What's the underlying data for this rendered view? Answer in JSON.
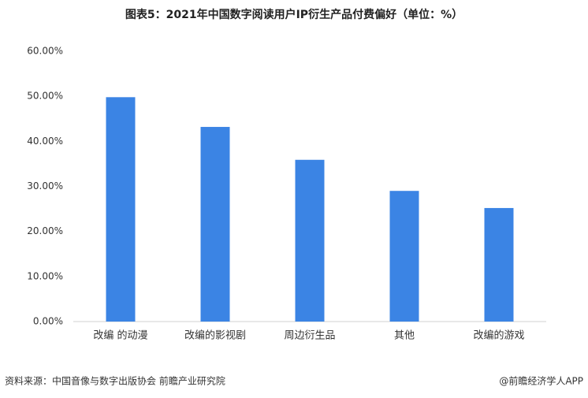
{
  "chart_data": {
    "type": "bar",
    "title": "图表5：2021年中国数字阅读用户IP衍生产品付费偏好（单位：%）",
    "categories": [
      "改编 的动漫",
      "改编的影视剧",
      "周边衍生品",
      "其他",
      "改编的游戏"
    ],
    "values": [
      49.8,
      43.2,
      35.9,
      29.0,
      25.2
    ],
    "color": "#3b84e4",
    "ylim": [
      0,
      60
    ],
    "yticks": [
      {
        "value": 0,
        "label": "0.00%"
      },
      {
        "value": 10,
        "label": "10.00%"
      },
      {
        "value": 20,
        "label": "20.00%"
      },
      {
        "value": 30,
        "label": "30.00%"
      },
      {
        "value": 40,
        "label": "40.00%"
      },
      {
        "value": 50,
        "label": "50.00%"
      },
      {
        "value": 60,
        "label": "60.00%"
      }
    ],
    "grid": false
  },
  "footer": {
    "source": "资料来源：中国音像与数字出版协会 前瞻产业研究院",
    "brand": "@前瞻经济学人APP"
  }
}
